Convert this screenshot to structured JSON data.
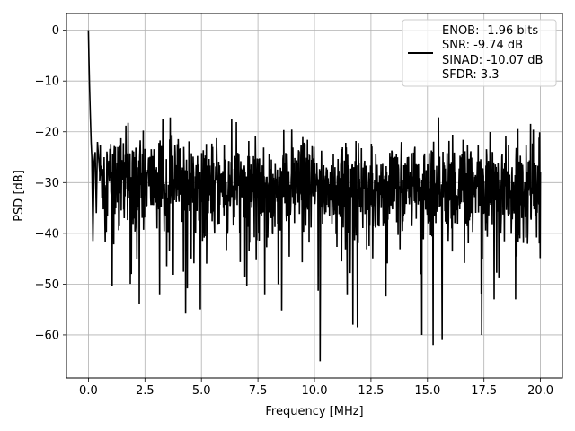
{
  "chart_data": {
    "type": "line",
    "title": "",
    "xlabel": "Frequency [MHz]",
    "ylabel": "PSD [dB]",
    "xlim": [
      -0.97,
      20.97
    ],
    "ylim": [
      -68.5,
      3.3
    ],
    "xticks": [
      0.0,
      2.5,
      5.0,
      7.5,
      10.0,
      12.5,
      15.0,
      17.5,
      20.0
    ],
    "xtick_labels": [
      "0.0",
      "2.5",
      "5.0",
      "7.5",
      "10.0",
      "12.5",
      "15.0",
      "17.5",
      "20.0"
    ],
    "yticks": [
      0,
      -10,
      -20,
      -30,
      -40,
      -50,
      -60
    ],
    "ytick_labels": [
      "0",
      "−10",
      "−20",
      "−30",
      "−40",
      "−50",
      "−60"
    ],
    "grid": true,
    "legend_position": "upper right",
    "line_color": "#000000",
    "series": [
      {
        "legend_lines": [
          "ENOB: -1.96 bits",
          "SNR: -9.74 dB",
          "SINAD: -10.07 dB",
          "SFDR: 3.3"
        ],
        "noise_floor_db": -31,
        "x": [
          0.0,
          0.02,
          0.05,
          0.08,
          0.12,
          0.15,
          0.2,
          0.25,
          0.3,
          0.35,
          0.4,
          0.5,
          1.05,
          1.3,
          1.9,
          2.05,
          2.25,
          3.15,
          4.3,
          4.95,
          7.8,
          8.55,
          10.25,
          11.45,
          11.7,
          11.9,
          14.75,
          15.25,
          15.65,
          17.4,
          17.95,
          18.9,
          19.95,
          20.0
        ],
        "y": [
          0.0,
          -5.0,
          -11.0,
          -16.0,
          -22.0,
          -25.0,
          -41.5,
          -26.0,
          -24.0,
          -36.0,
          -22.0,
          -28.0,
          -50.3,
          -23.0,
          -48.0,
          -25.0,
          -54.0,
          -52.0,
          -55.8,
          -55.0,
          -52.0,
          -55.2,
          -65.2,
          -52.0,
          -58.0,
          -58.5,
          -60.0,
          -62.0,
          -61.0,
          -60.0,
          -53.0,
          -53.0,
          -42.0,
          -28.0
        ]
      }
    ]
  }
}
